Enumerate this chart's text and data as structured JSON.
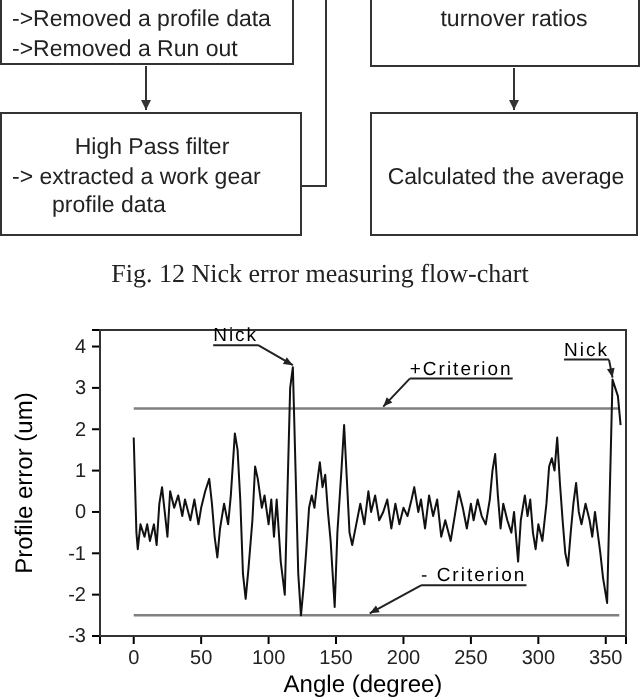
{
  "chart_data": {
    "type": "line",
    "xlabel": "Angle (degree)",
    "ylabel": "Profile error (um)",
    "xlim": [
      -25,
      365
    ],
    "ylim": [
      -3,
      4.4
    ],
    "xticks": [
      0,
      50,
      100,
      150,
      200,
      250,
      300,
      350
    ],
    "yticks": [
      -3,
      -2,
      -1,
      0,
      1,
      2,
      3,
      4
    ],
    "grid": false,
    "marker": "none",
    "line_style": "solid",
    "ref_lines": [
      {
        "axis": "y",
        "value": 2.5,
        "color": "#808080"
      },
      {
        "axis": "y",
        "value": -2.5,
        "color": "#808080"
      }
    ],
    "annotations": [
      "->Removed a profile data",
      "->Removed a Run out",
      "High Pass filter",
      "-> extracted a work gear",
      "profile data",
      "turnover ratios",
      "Calculated the average",
      "Fig. 12  Nick error measuring flow-chart",
      {
        "text": "Nick",
        "x": 118,
        "y": 3.5
      },
      {
        "text": "Nick",
        "x": 355,
        "y": 3.2
      },
      {
        "text": "+Criterion",
        "x": 185,
        "y": 2.5
      },
      {
        "text": "- Criterion",
        "x": 175,
        "y": -2.5
      }
    ],
    "series": [
      {
        "color": "#111111",
        "x": [
          0,
          2,
          3,
          5,
          8,
          10,
          12,
          15,
          17,
          19,
          21,
          23,
          25,
          27,
          30,
          33,
          36,
          38,
          42,
          45,
          48,
          50,
          53,
          56,
          58,
          60,
          62,
          64,
          67,
          70,
          72,
          75,
          77,
          79,
          81,
          83,
          85,
          88,
          90,
          92,
          95,
          97,
          100,
          102,
          104,
          106,
          109,
          112,
          114,
          116,
          118,
          120,
          122,
          124,
          126,
          128,
          130,
          132,
          134,
          136,
          138,
          140,
          142,
          144,
          146,
          149,
          151,
          154,
          156,
          158,
          160,
          162,
          165,
          168,
          171,
          174,
          176,
          179,
          182,
          185,
          188,
          191,
          194,
          197,
          200,
          203,
          206,
          208,
          211,
          213,
          216,
          219,
          222,
          225,
          228,
          231,
          235,
          238,
          241,
          244,
          247,
          250,
          252,
          255,
          258,
          261,
          264,
          266,
          268,
          270,
          272,
          274,
          277,
          280,
          282,
          285,
          287,
          290,
          292,
          294,
          296,
          298,
          300,
          303,
          306,
          308,
          310,
          312,
          314,
          316,
          318,
          320,
          322,
          324,
          326,
          328,
          330,
          332,
          335,
          338,
          340,
          342,
          344,
          346,
          348,
          351,
          353,
          355,
          357,
          359,
          361
        ],
        "values": [
          1.8,
          -0.5,
          -0.9,
          -0.3,
          -0.6,
          -0.3,
          -0.7,
          -0.3,
          -0.8,
          0.2,
          0.6,
          0.0,
          -0.6,
          0.5,
          0.1,
          0.4,
          -0.1,
          0.3,
          -0.2,
          0.3,
          -0.3,
          0.1,
          0.5,
          0.8,
          0.2,
          -0.6,
          -1.1,
          -0.4,
          0.2,
          -0.3,
          0.4,
          1.9,
          1.5,
          0.3,
          -1.5,
          -2.1,
          -1.4,
          -0.2,
          1.1,
          0.8,
          0.1,
          0.4,
          -0.3,
          0.3,
          -0.6,
          0.3,
          -1.2,
          -2.0,
          0.5,
          3.0,
          3.5,
          1.0,
          -1.5,
          -2.5,
          -1.8,
          -0.9,
          0.1,
          0.4,
          0.1,
          0.7,
          1.2,
          0.6,
          0.9,
          0.0,
          -0.7,
          -2.3,
          -0.5,
          1.0,
          2.1,
          0.8,
          -0.5,
          -0.8,
          -0.3,
          0.2,
          -0.3,
          0.5,
          0.0,
          0.4,
          -0.2,
          0.0,
          0.3,
          -0.4,
          0.2,
          -0.3,
          0.1,
          -0.1,
          0.3,
          0.6,
          0.0,
          0.3,
          -0.4,
          0.4,
          -0.1,
          0.3,
          -0.6,
          -0.2,
          -0.7,
          -0.1,
          0.5,
          0.1,
          -0.4,
          0.2,
          -0.2,
          0.3,
          -0.1,
          -0.3,
          0.3,
          1.0,
          1.4,
          0.4,
          -0.4,
          0.2,
          -0.2,
          -0.5,
          0.0,
          -1.2,
          -0.2,
          0.4,
          -0.1,
          0.3,
          -0.5,
          -0.9,
          -0.3,
          -0.7,
          0.2,
          1.1,
          1.3,
          1.0,
          1.8,
          0.7,
          -0.2,
          -1.0,
          -1.3,
          -0.5,
          0.2,
          0.7,
          0.0,
          -0.3,
          0.2,
          -0.2,
          -0.6,
          0.0,
          -0.5,
          -1.0,
          -1.6,
          -2.2,
          0.5,
          3.2,
          3.0,
          2.8,
          2.1
        ]
      }
    ]
  }
}
